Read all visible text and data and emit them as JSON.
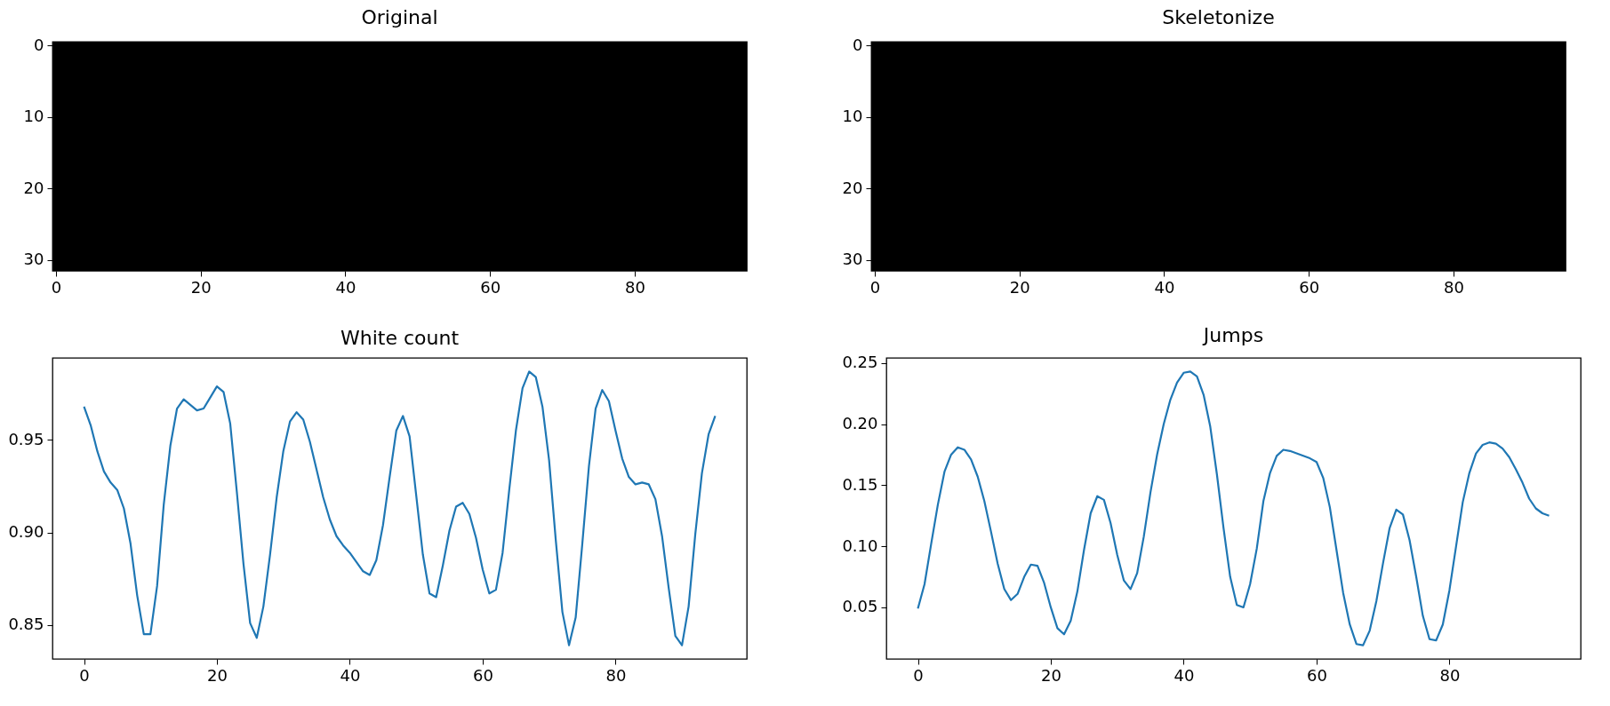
{
  "chart_data": [
    {
      "type": "heatmap",
      "title": "Original",
      "xlim": [
        -0.5,
        95.5
      ],
      "ylim": [
        31.5,
        -0.5
      ],
      "xticks": [
        0,
        20,
        40,
        60,
        80
      ],
      "yticks": [
        0,
        10,
        20,
        30
      ]
    },
    {
      "type": "heatmap",
      "title": "Skeletonize",
      "xlim": [
        -0.5,
        95.5
      ],
      "ylim": [
        31.5,
        -0.5
      ],
      "xticks": [
        0,
        20,
        40,
        60,
        80
      ],
      "yticks": [
        0,
        10,
        20,
        30
      ]
    },
    {
      "type": "line",
      "title": "White count",
      "x": [
        0,
        1,
        2,
        3,
        4,
        5,
        6,
        7,
        8,
        9,
        10,
        11,
        12,
        13,
        14,
        15,
        16,
        17,
        18,
        19,
        20,
        21,
        22,
        23,
        24,
        25,
        26,
        27,
        28,
        29,
        30,
        31,
        32,
        33,
        34,
        35,
        36,
        37,
        38,
        39,
        40,
        41,
        42,
        43,
        44,
        45,
        46,
        47,
        48,
        49,
        50,
        51,
        52,
        53,
        54,
        55,
        56,
        57,
        58,
        59,
        60,
        61,
        62,
        63,
        64,
        65,
        66,
        67,
        68,
        69,
        70,
        71,
        72,
        73,
        74,
        75,
        76,
        77,
        78,
        79,
        80,
        81,
        82,
        83,
        84,
        85,
        86,
        87,
        88,
        89,
        90,
        91,
        92,
        93,
        94,
        95
      ],
      "xlim": [
        -4.75,
        99.75
      ],
      "xticks": [
        0,
        20,
        40,
        60,
        80
      ],
      "ylim": [
        0.8316,
        0.9944
      ],
      "yticks": [
        0.85,
        {
          "value": 0.9,
          "label": "0.90"
        },
        0.95
      ],
      "grid": false,
      "series": [
        {
          "color": "#1f77b4",
          "values": [
            0.968,
            0.958,
            0.944,
            0.933,
            0.927,
            0.923,
            0.913,
            0.894,
            0.866,
            0.845,
            0.845,
            0.871,
            0.915,
            0.947,
            0.967,
            0.972,
            0.969,
            0.966,
            0.967,
            0.973,
            0.979,
            0.976,
            0.959,
            0.922,
            0.883,
            0.851,
            0.843,
            0.86,
            0.888,
            0.919,
            0.944,
            0.96,
            0.965,
            0.961,
            0.949,
            0.934,
            0.919,
            0.907,
            0.898,
            0.893,
            0.889,
            0.884,
            0.879,
            0.877,
            0.885,
            0.904,
            0.93,
            0.955,
            0.963,
            0.952,
            0.92,
            0.888,
            0.867,
            0.865,
            0.882,
            0.901,
            0.914,
            0.916,
            0.91,
            0.897,
            0.88,
            0.867,
            0.869,
            0.889,
            0.923,
            0.955,
            0.978,
            0.987,
            0.984,
            0.968,
            0.939,
            0.896,
            0.857,
            0.839,
            0.854,
            0.894,
            0.936,
            0.967,
            0.977,
            0.971,
            0.955,
            0.94,
            0.93,
            0.926,
            0.927,
            0.926,
            0.918,
            0.898,
            0.87,
            0.844,
            0.839,
            0.86,
            0.899,
            0.932,
            0.953,
            0.963
          ]
        }
      ]
    },
    {
      "type": "line",
      "title": "Jumps",
      "x": [
        0,
        1,
        2,
        3,
        4,
        5,
        6,
        7,
        8,
        9,
        10,
        11,
        12,
        13,
        14,
        15,
        16,
        17,
        18,
        19,
        20,
        21,
        22,
        23,
        24,
        25,
        26,
        27,
        28,
        29,
        30,
        31,
        32,
        33,
        34,
        35,
        36,
        37,
        38,
        39,
        40,
        41,
        42,
        43,
        44,
        45,
        46,
        47,
        48,
        49,
        50,
        51,
        52,
        53,
        54,
        55,
        56,
        57,
        58,
        59,
        60,
        61,
        62,
        63,
        64,
        65,
        66,
        67,
        68,
        69,
        70,
        71,
        72,
        73,
        74,
        75,
        76,
        77,
        78,
        79,
        80,
        81,
        82,
        83,
        84,
        85,
        86,
        87,
        88,
        89,
        90,
        91,
        92,
        93,
        94,
        95
      ],
      "xlim": [
        -4.75,
        99.75
      ],
      "xticks": [
        0,
        20,
        40,
        60,
        80
      ],
      "ylim": [
        0.0078,
        0.2542
      ],
      "yticks": [
        0.05,
        {
          "value": 0.1,
          "label": "0.10"
        },
        0.15,
        {
          "value": 0.2,
          "label": "0.20"
        },
        0.25
      ],
      "grid": false,
      "series": [
        {
          "color": "#1f77b4",
          "values": [
            0.049,
            0.069,
            0.102,
            0.134,
            0.161,
            0.175,
            0.181,
            0.179,
            0.171,
            0.157,
            0.137,
            0.112,
            0.086,
            0.065,
            0.056,
            0.061,
            0.075,
            0.085,
            0.084,
            0.07,
            0.05,
            0.033,
            0.028,
            0.039,
            0.063,
            0.097,
            0.127,
            0.141,
            0.138,
            0.119,
            0.093,
            0.072,
            0.065,
            0.078,
            0.108,
            0.144,
            0.175,
            0.2,
            0.22,
            0.234,
            0.242,
            0.243,
            0.239,
            0.224,
            0.198,
            0.159,
            0.115,
            0.075,
            0.052,
            0.05,
            0.069,
            0.098,
            0.137,
            0.16,
            0.174,
            0.179,
            0.178,
            0.176,
            0.174,
            0.172,
            0.169,
            0.156,
            0.132,
            0.097,
            0.062,
            0.036,
            0.02,
            0.019,
            0.031,
            0.055,
            0.086,
            0.115,
            0.13,
            0.126,
            0.105,
            0.075,
            0.043,
            0.024,
            0.023,
            0.036,
            0.064,
            0.1,
            0.136,
            0.16,
            0.176,
            0.183,
            0.185,
            0.184,
            0.18,
            0.173,
            0.163,
            0.152,
            0.139,
            0.131,
            0.127,
            0.125
          ]
        }
      ]
    }
  ]
}
